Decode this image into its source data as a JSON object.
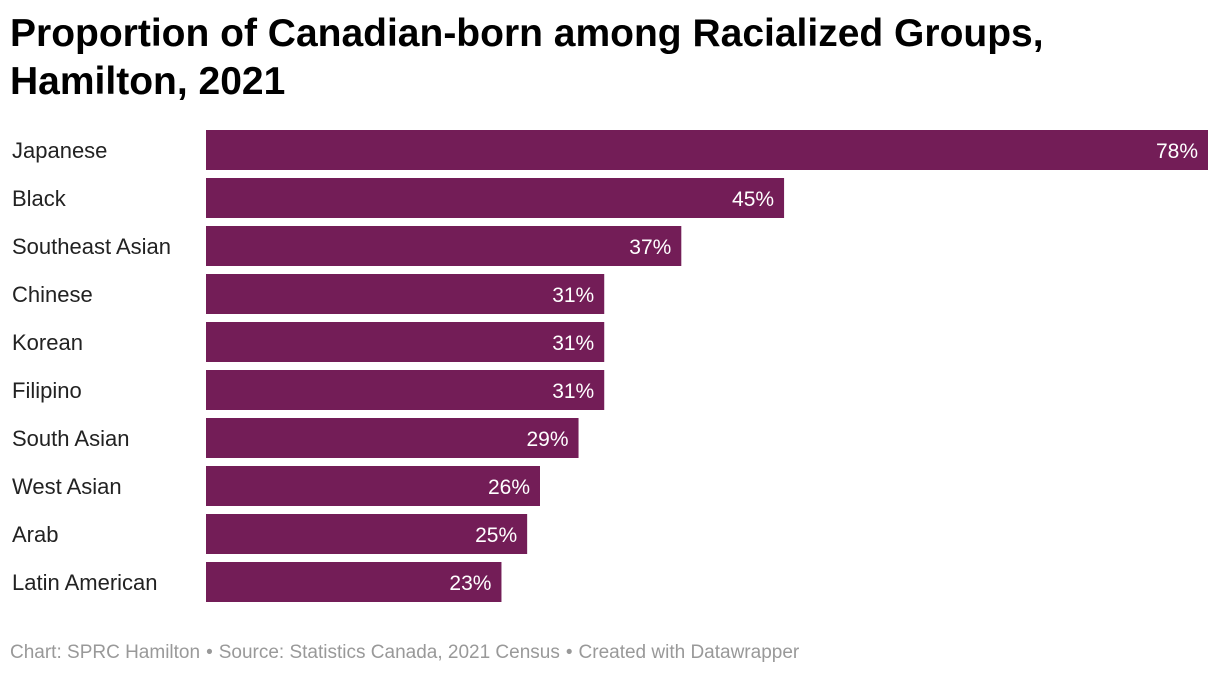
{
  "chart_data": {
    "type": "bar",
    "orientation": "horizontal",
    "title": "Proportion of Canadian-born among Racialized Groups, Hamilton, 2021",
    "categories": [
      "Japanese",
      "Black",
      "Southeast Asian",
      "Chinese",
      "Korean",
      "Filipino",
      "South Asian",
      "West Asian",
      "Arab",
      "Latin American"
    ],
    "values": [
      78,
      45,
      37,
      31,
      31,
      31,
      29,
      26,
      25,
      23
    ],
    "value_labels": [
      "78%",
      "45%",
      "37%",
      "31%",
      "31%",
      "31%",
      "29%",
      "26%",
      "25%",
      "23%"
    ],
    "xlim": [
      0,
      78
    ],
    "grid": false,
    "bar_color": "#731d57"
  },
  "footer": {
    "chart_credit": "Chart: SPRC Hamilton",
    "source": "Source: Statistics Canada, 2021 Census",
    "tool": "Created with Datawrapper",
    "separator": "•"
  }
}
